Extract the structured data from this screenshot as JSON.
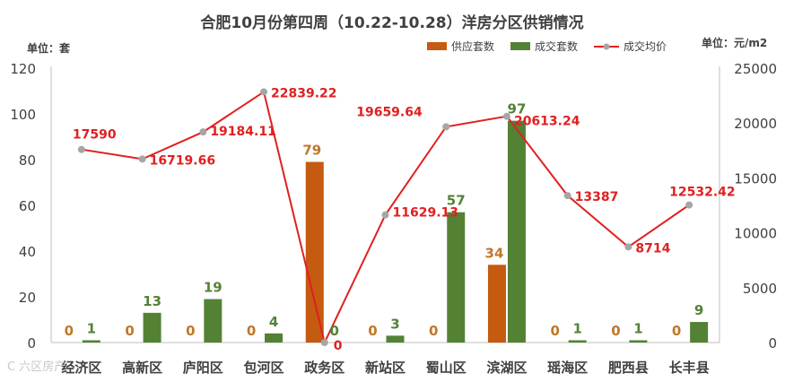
{
  "chart_data": {
    "type": "bar",
    "title": "合肥10月份第四周（10.22-10.28）洋房分区供销情况",
    "ylabel_left": "单位：套",
    "ylabel_right": "单位：元/m2",
    "categories": [
      "经济区",
      "高新区",
      "庐阳区",
      "包河区",
      "政务区",
      "新站区",
      "蜀山区",
      "滨湖区",
      "瑶海区",
      "肥西县",
      "长丰县"
    ],
    "series": [
      {
        "name": "供应套数",
        "type": "bar",
        "axis": "left",
        "color": "#c55a11",
        "label_color": "#c0772a",
        "values": [
          0,
          0,
          0,
          0,
          79,
          0,
          0,
          34,
          0,
          0,
          0
        ]
      },
      {
        "name": "成交套数",
        "type": "bar",
        "axis": "left",
        "color": "#548235",
        "label_color": "#548235",
        "values": [
          1,
          13,
          19,
          4,
          0,
          3,
          57,
          97,
          1,
          1,
          9
        ]
      },
      {
        "name": "成交均价",
        "type": "line",
        "axis": "right",
        "color": "#e02020",
        "marker_color": "#a6a6a6",
        "label_color": "#e02020",
        "values": [
          17590,
          16719.66,
          19184.11,
          22839.22,
          0,
          11629.13,
          19659.64,
          20613.24,
          13387,
          8714,
          12532.42
        ]
      }
    ],
    "ylim_left": [
      0,
      120
    ],
    "yticks_left": [
      0,
      20,
      40,
      60,
      80,
      100,
      120
    ],
    "ylim_right": [
      0,
      25000
    ],
    "yticks_right": [
      0,
      5000,
      10000,
      15000,
      20000,
      25000
    ],
    "legend_position": "top-right",
    "grid": false
  },
  "watermark": "C 六区房产"
}
